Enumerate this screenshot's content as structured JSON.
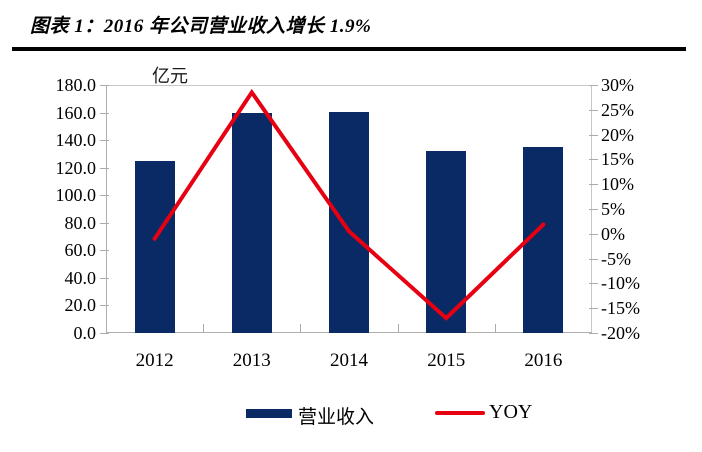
{
  "header": {
    "title": "图表 1：2016 年公司营业收入增长 1.9%"
  },
  "chart_data": {
    "type": "bar+line",
    "title": "图表 1：2016 年公司营业收入增长 1.9%",
    "unit_label": "亿元",
    "categories": [
      "2012",
      "2013",
      "2014",
      "2015",
      "2016"
    ],
    "series": [
      {
        "name": "营业收入",
        "kind": "bar",
        "axis": "left",
        "unit": "亿元",
        "values": [
          125.0,
          160.0,
          160.5,
          132.0,
          135.0
        ],
        "color": "#0a2a66"
      },
      {
        "name": "YOY",
        "kind": "line",
        "axis": "right",
        "unit": "%",
        "values": [
          -1.0,
          28.5,
          0.5,
          -17.0,
          1.9
        ],
        "color": "#e60012"
      }
    ],
    "left_axis": {
      "min": 0,
      "max": 180,
      "step": 20,
      "tick_labels": [
        "180.0",
        "160.0",
        "140.0",
        "120.0",
        "100.0",
        "80.0",
        "60.0",
        "40.0",
        "20.0",
        "0.0"
      ]
    },
    "right_axis": {
      "min": -20,
      "max": 30,
      "step": 5,
      "tick_labels": [
        "30%",
        "25%",
        "20%",
        "15%",
        "10%",
        "5%",
        "0%",
        "-5%",
        "-10%",
        "-15%",
        "-20%"
      ]
    },
    "legend": [
      "营业收入",
      "YOY"
    ],
    "legend_position": "bottom",
    "grid": "off"
  }
}
